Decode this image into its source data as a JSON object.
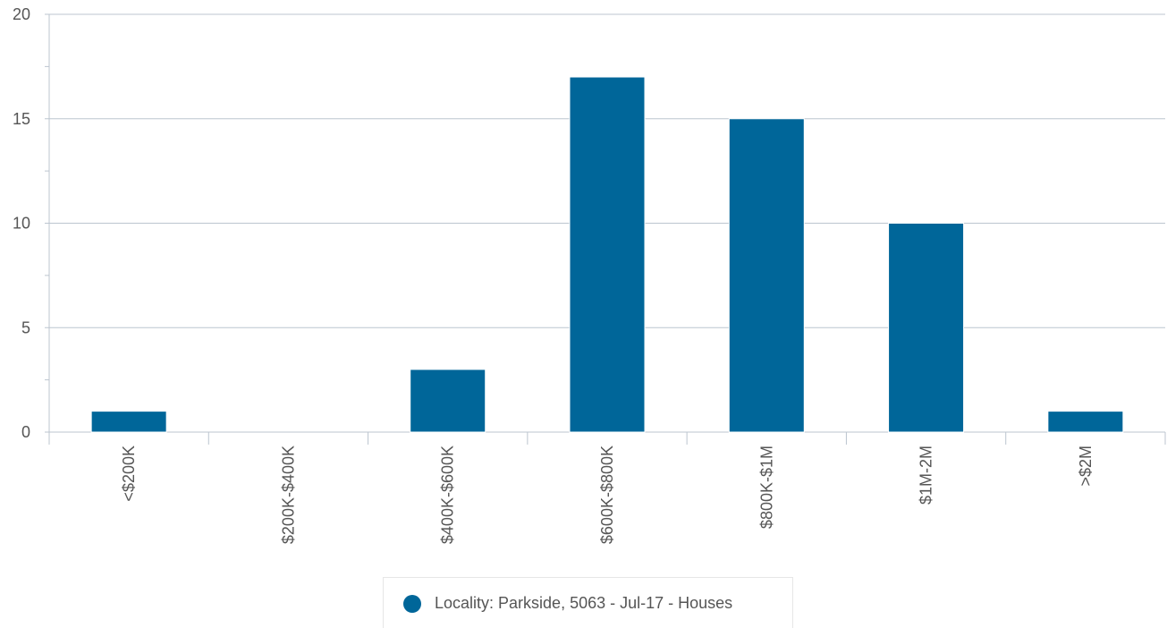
{
  "chart_data": {
    "type": "bar",
    "categories": [
      "<$200K",
      "$200K-$400K",
      "$400K-$600K",
      "$600K-$800K",
      "$800K-$1M",
      "$1M-2M",
      ">$2M"
    ],
    "series": [
      {
        "name": "Locality: Parkside, 5063 - Jul-17 - Houses",
        "values": [
          1,
          0,
          3,
          17,
          15,
          10,
          1
        ]
      }
    ],
    "ylim": [
      0,
      20
    ],
    "yticks": [
      0,
      5,
      10,
      15,
      20
    ],
    "y_minor_step": 2.5,
    "grid": true,
    "legend_position": "bottom-center",
    "colors": {
      "bar": "#006699",
      "grid": "#bcc5cf",
      "axis": "#bcc5cf",
      "text": "#555555"
    }
  }
}
